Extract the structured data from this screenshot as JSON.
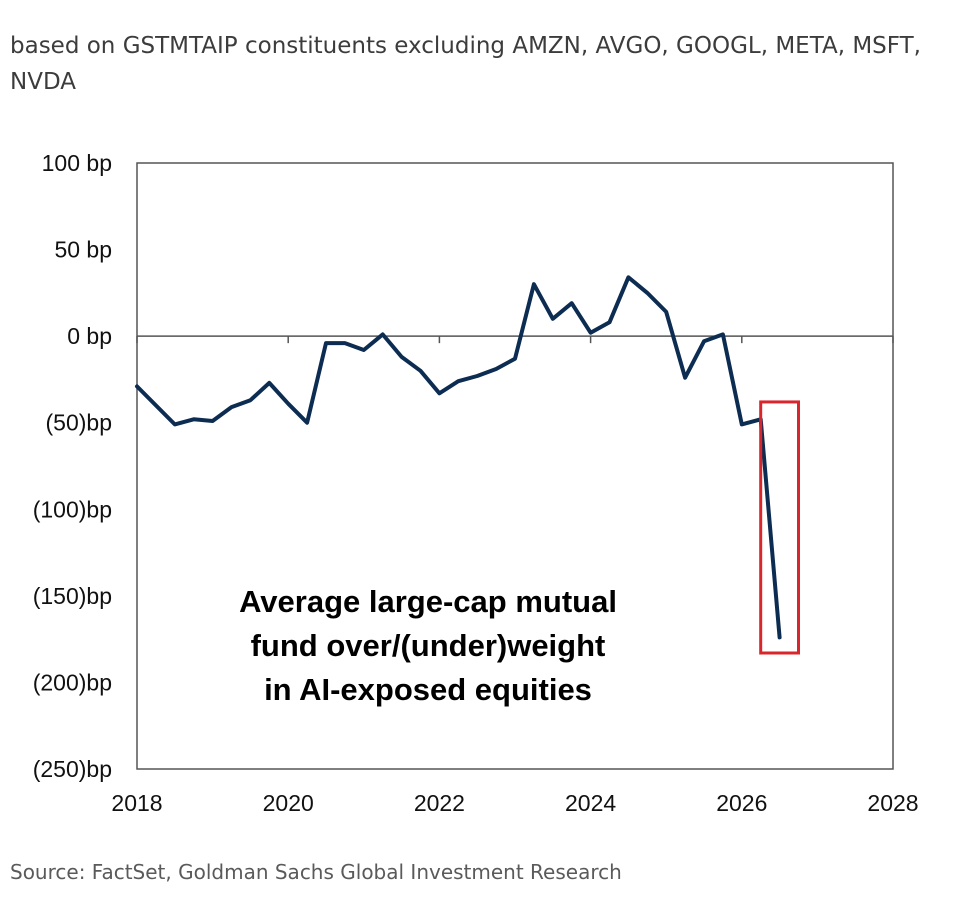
{
  "subtitle": "based on GSTMTAIP constituents excluding AMZN, AVGO, GOOGL, META, MSFT, NVDA",
  "source": "Source: FactSet, Goldman Sachs Global Investment Research",
  "colors": {
    "line": "#0c2c52",
    "highlight": "#d9262c",
    "axis": "#555555"
  },
  "chart_data": {
    "type": "line",
    "title": "",
    "xlabel": "",
    "ylabel": "",
    "xlim": [
      2018,
      2028
    ],
    "ylim": [
      -250,
      100
    ],
    "x_ticks": [
      "2018",
      "2020",
      "2022",
      "2024",
      "2026",
      "2028"
    ],
    "y_ticks": [
      {
        "value": 100,
        "label": "100 bp"
      },
      {
        "value": 50,
        "label": "50 bp"
      },
      {
        "value": 0,
        "label": "0 bp"
      },
      {
        "value": -50,
        "label": "(50)bp"
      },
      {
        "value": -100,
        "label": "(100)bp"
      },
      {
        "value": -150,
        "label": "(150)bp"
      },
      {
        "value": -200,
        "label": "(200)bp"
      },
      {
        "value": -250,
        "label": "(250)bp"
      }
    ],
    "grid": false,
    "annotation": [
      "Average large-cap mutual",
      "fund over/(under)weight",
      "in AI-exposed equities"
    ],
    "highlight_x_range": [
      2026.25,
      2026.75
    ],
    "highlight_y_range": [
      -183,
      -38
    ],
    "series": [
      {
        "x": [
          2018.0,
          2018.25,
          2018.5,
          2018.75,
          2019.0,
          2019.25,
          2019.5,
          2019.75,
          2020.0,
          2020.25,
          2020.5,
          2020.75,
          2021.0,
          2021.25,
          2021.5,
          2021.75,
          2022.0,
          2022.25,
          2022.5,
          2022.75,
          2023.0,
          2023.25,
          2023.5,
          2023.75,
          2024.0,
          2024.25,
          2024.5,
          2024.75,
          2025.0,
          2025.25,
          2025.5,
          2025.75,
          2026.0,
          2026.25,
          2026.5
        ],
        "values": [
          -29,
          -40,
          -51,
          -48,
          -49,
          -41,
          -37,
          -27,
          -39,
          -50,
          -4,
          -4,
          -8,
          1,
          -12,
          -20,
          -33,
          -26,
          -23,
          -19,
          -13,
          30,
          10,
          19,
          2,
          8,
          34,
          25,
          14,
          -24,
          -3,
          1,
          -51,
          -48,
          -174
        ]
      }
    ]
  }
}
